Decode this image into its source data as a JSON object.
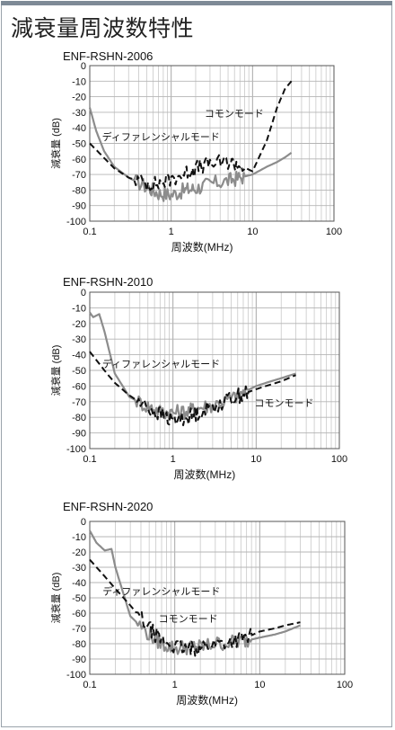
{
  "page": {
    "title": "減衰量周波数特性"
  },
  "chart_data": [
    {
      "type": "line",
      "title": "ENF-RSHN-2006",
      "xlabel": "周波数(MHz)",
      "ylabel": "減衰量 (dB)",
      "x_scale": "log",
      "xlim": [
        0.1,
        100
      ],
      "ylim": [
        -100,
        0
      ],
      "x_ticks": [
        0.1,
        1,
        10,
        100
      ],
      "x_tick_labels": [
        "0.1",
        "1",
        "10",
        "100"
      ],
      "y_ticks": [
        0,
        -10,
        -20,
        -30,
        -40,
        -50,
        -60,
        -70,
        -80,
        -90,
        -100
      ],
      "y_tick_labels": [
        "0",
        "-10",
        "-20",
        "-30",
        "-40",
        "-50",
        "-60",
        "-70",
        "-80",
        "-90",
        "-100"
      ],
      "grid": true,
      "series": [
        {
          "name": "コモンモード",
          "style": "dashed",
          "color": "#111111",
          "label_position": "top-right",
          "x": [
            0.1,
            0.13,
            0.2,
            0.3,
            0.5,
            0.7,
            1.0,
            1.5,
            2,
            3,
            5,
            7,
            10,
            15,
            20,
            25,
            30
          ],
          "y": [
            -50,
            -56,
            -66,
            -72,
            -76,
            -76,
            -73,
            -69,
            -66,
            -63,
            -62,
            -64,
            -68,
            -48,
            -27,
            -15,
            -10
          ]
        },
        {
          "name": "ディファレンシャルモード",
          "style": "solid",
          "color": "#8c8c8c",
          "label_position": "upper-left",
          "x": [
            0.1,
            0.12,
            0.15,
            0.2,
            0.3,
            0.5,
            0.7,
            1.0,
            1.5,
            2,
            3,
            5,
            7,
            10,
            15,
            20,
            25,
            30
          ],
          "y": [
            -27,
            -42,
            -55,
            -65,
            -72,
            -78,
            -82,
            -83,
            -80,
            -79,
            -76,
            -74,
            -72,
            -70,
            -65,
            -62,
            -59,
            -56
          ]
        }
      ]
    },
    {
      "type": "line",
      "title": "ENF-RSHN-2010",
      "xlabel": "周波数(MHz)",
      "ylabel": "減衰量 (dB)",
      "x_scale": "log",
      "xlim": [
        0.1,
        100
      ],
      "ylim": [
        -100,
        0
      ],
      "x_ticks": [
        0.1,
        1,
        10,
        100
      ],
      "x_tick_labels": [
        "0.1",
        "1",
        "10",
        "100"
      ],
      "y_ticks": [
        0,
        -10,
        -20,
        -30,
        -40,
        -50,
        -60,
        -70,
        -80,
        -90,
        -100
      ],
      "y_tick_labels": [
        "0",
        "-10",
        "-20",
        "-30",
        "-40",
        "-50",
        "-60",
        "-70",
        "-80",
        "-90",
        "-100"
      ],
      "grid": true,
      "series": [
        {
          "name": "コモンモード",
          "style": "dashed",
          "color": "#111111",
          "label_position": "right",
          "x": [
            0.1,
            0.15,
            0.2,
            0.3,
            0.5,
            0.7,
            1.0,
            1.5,
            2,
            3,
            5,
            7,
            10,
            15,
            20,
            30
          ],
          "y": [
            -38,
            -50,
            -58,
            -66,
            -74,
            -78,
            -82,
            -80,
            -77,
            -73,
            -68,
            -65,
            -62,
            -59,
            -57,
            -53
          ]
        },
        {
          "name": "ディファレンシャルモード",
          "style": "solid",
          "color": "#8c8c8c",
          "label_position": "upper-left",
          "x": [
            0.1,
            0.11,
            0.13,
            0.15,
            0.2,
            0.3,
            0.5,
            0.7,
            1.0,
            1.5,
            2,
            3,
            5,
            7,
            10,
            15,
            20,
            30
          ],
          "y": [
            -13,
            -16,
            -14,
            -25,
            -52,
            -67,
            -73,
            -76,
            -77,
            -76,
            -74,
            -72,
            -68,
            -64,
            -60,
            -57,
            -55,
            -52
          ]
        }
      ]
    },
    {
      "type": "line",
      "title": "ENF-RSHN-2020",
      "xlabel": "周波数(MHz)",
      "ylabel": "減衰量 (dB)",
      "x_scale": "log",
      "xlim": [
        0.1,
        100
      ],
      "ylim": [
        -100,
        0
      ],
      "x_ticks": [
        0.1,
        1,
        10,
        100
      ],
      "x_tick_labels": [
        "0.1",
        "1",
        "10",
        "100"
      ],
      "y_ticks": [
        0,
        -10,
        -20,
        -30,
        -40,
        -50,
        -60,
        -70,
        -80,
        -90,
        -100
      ],
      "y_tick_labels": [
        "0",
        "-10",
        "-20",
        "-30",
        "-40",
        "-50",
        "-60",
        "-70",
        "-80",
        "-90",
        "-100"
      ],
      "grid": true,
      "series": [
        {
          "name": "コモンモード",
          "style": "dashed",
          "color": "#111111",
          "label_position": "center",
          "x": [
            0.1,
            0.15,
            0.2,
            0.3,
            0.5,
            0.7,
            1.0,
            1.5,
            2,
            3,
            5,
            7,
            10,
            15,
            20,
            30
          ],
          "y": [
            -25,
            -36,
            -44,
            -55,
            -70,
            -78,
            -82,
            -84,
            -82,
            -80,
            -78,
            -76,
            -72,
            -70,
            -68,
            -66
          ]
        },
        {
          "name": "ディファレンシャルモード",
          "style": "solid",
          "color": "#8c8c8c",
          "label_position": "upper-left",
          "x": [
            0.1,
            0.12,
            0.15,
            0.18,
            0.2,
            0.3,
            0.5,
            0.7,
            1.0,
            1.5,
            2,
            3,
            5,
            7,
            10,
            15,
            20,
            30
          ],
          "y": [
            -6,
            -14,
            -19,
            -18,
            -30,
            -62,
            -74,
            -80,
            -83,
            -82,
            -82,
            -80,
            -79,
            -78,
            -76,
            -74,
            -72,
            -68
          ]
        }
      ]
    }
  ]
}
